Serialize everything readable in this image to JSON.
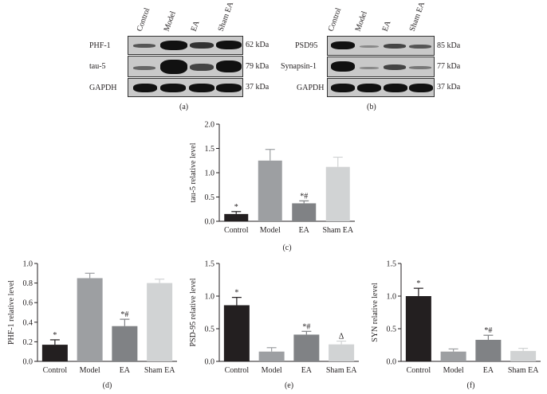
{
  "blot_a": {
    "lanes": [
      "Control",
      "Model",
      "EA",
      "Sham EA"
    ],
    "rows": [
      {
        "protein": "PHF-1",
        "kda": "62 kDa"
      },
      {
        "protein": "tau-5",
        "kda": "79 kDa"
      },
      {
        "protein": "GAPDH",
        "kda": "37 kDa"
      }
    ],
    "caption": "(a)"
  },
  "blot_b": {
    "lanes": [
      "Control",
      "Model",
      "EA",
      "Sham EA"
    ],
    "rows": [
      {
        "protein": "PSD95",
        "kda": "85 kDa"
      },
      {
        "protein": "Synapsin-1",
        "kda": "77 kDa"
      },
      {
        "protein": "GAPDH",
        "kda": "37 kDa"
      }
    ],
    "caption": "(b)"
  },
  "chart_data": [
    {
      "id": "c",
      "type": "bar",
      "caption": "(c)",
      "categories": [
        "Control",
        "Model",
        "EA",
        "Sham EA"
      ],
      "values": [
        0.15,
        1.25,
        0.37,
        1.12
      ],
      "errors": [
        0.05,
        0.23,
        0.05,
        0.2
      ],
      "annotations": [
        "*",
        "",
        "*#",
        ""
      ],
      "ylabel": "tau-5 relative level",
      "ylim": [
        0,
        2.0
      ],
      "yticks": [
        "0.0",
        "0.5",
        "1.0",
        "1.5",
        "2.0"
      ],
      "colors": [
        "#231f20",
        "#9d9fa2",
        "#808285",
        "#d1d3d4"
      ]
    },
    {
      "id": "d",
      "type": "bar",
      "caption": "(d)",
      "categories": [
        "Control",
        "Model",
        "EA",
        "Sham EA"
      ],
      "values": [
        0.17,
        0.85,
        0.36,
        0.8
      ],
      "errors": [
        0.05,
        0.05,
        0.07,
        0.04
      ],
      "annotations": [
        "*",
        "",
        "*#",
        ""
      ],
      "ylabel": "PHF-1 relative level",
      "ylim": [
        0,
        1.0
      ],
      "yticks": [
        "0.0",
        "0.2",
        "0.4",
        "0.6",
        "0.8",
        "1.0"
      ],
      "colors": [
        "#231f20",
        "#9d9fa2",
        "#808285",
        "#d1d3d4"
      ]
    },
    {
      "id": "e",
      "type": "bar",
      "caption": "(e)",
      "categories": [
        "Control",
        "Model",
        "EA",
        "Sham EA"
      ],
      "values": [
        0.86,
        0.15,
        0.41,
        0.26
      ],
      "errors": [
        0.12,
        0.06,
        0.05,
        0.05
      ],
      "annotations": [
        "*",
        "",
        "*#",
        "Δ"
      ],
      "ylabel": "PSD-95 relative level",
      "ylim": [
        0,
        1.5
      ],
      "yticks": [
        "0.0",
        "0.5",
        "1.0",
        "1.5"
      ],
      "colors": [
        "#231f20",
        "#9d9fa2",
        "#808285",
        "#d1d3d4"
      ]
    },
    {
      "id": "f",
      "type": "bar",
      "caption": "(f)",
      "categories": [
        "Control",
        "Model",
        "EA",
        "Sham EA"
      ],
      "values": [
        1.0,
        0.15,
        0.33,
        0.16
      ],
      "errors": [
        0.12,
        0.04,
        0.07,
        0.04
      ],
      "annotations": [
        "*",
        "",
        "*#",
        ""
      ],
      "ylabel": "SYN relative level",
      "ylim": [
        0,
        1.5
      ],
      "yticks": [
        "0.0",
        "0.5",
        "1.0",
        "1.5"
      ],
      "colors": [
        "#231f20",
        "#9d9fa2",
        "#808285",
        "#d1d3d4"
      ]
    }
  ]
}
